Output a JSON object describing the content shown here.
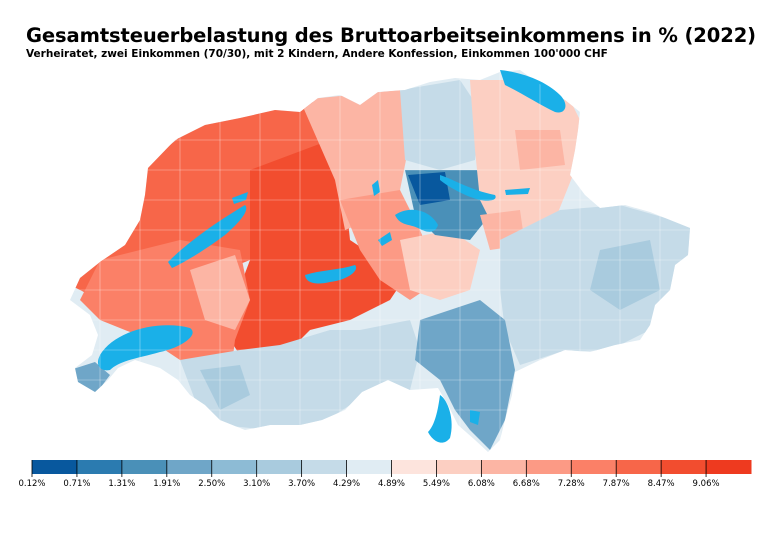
{
  "title": "Gesamtsteuerbelastung des Bruttoarbeitseinkommens in % (2022)",
  "subtitle": "Verheiratet, zwei Einkommen (70/30), mit 2 Kindern, Andere Konfession, Einkommen 100'000 CHF",
  "legend": {
    "tick_labels": [
      "0.12%",
      "0.71%",
      "1.31%",
      "1.91%",
      "2.50%",
      "3.10%",
      "3.70%",
      "4.29%",
      "4.89%",
      "5.49%",
      "6.08%",
      "6.68%",
      "7.28%",
      "7.87%",
      "8.47%",
      "9.06%"
    ],
    "range": [
      0.12,
      9.66
    ],
    "colors": [
      "#08589e",
      "#2b7bb0",
      "#4a90b8",
      "#6fa6c8",
      "#8dbbd5",
      "#a9cbde",
      "#c5dbe8",
      "#e0ecf3",
      "#fde4dd",
      "#fccfc2",
      "#fcb5a4",
      "#fc9a85",
      "#fb8067",
      "#f76649",
      "#f24d2f",
      "#ee3a1f"
    ]
  },
  "colors": {
    "lake": "#1ab0e8",
    "border": "#ffffff"
  }
}
